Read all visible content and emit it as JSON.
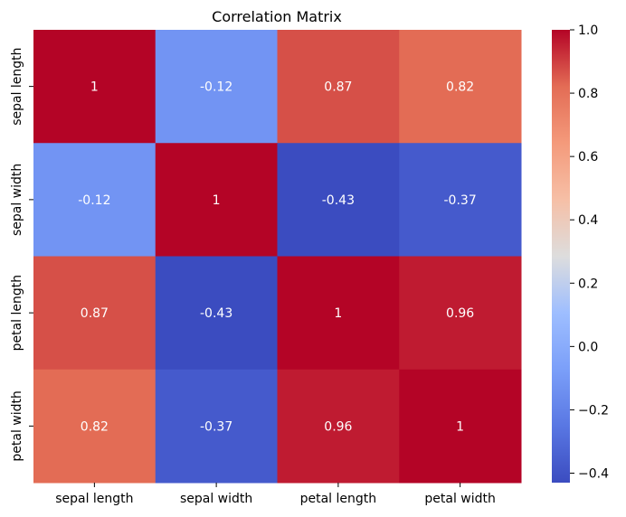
{
  "chart_data": {
    "type": "heatmap",
    "title": "Correlation Matrix",
    "row_labels": [
      "sepal length",
      "sepal width",
      "petal length",
      "petal width"
    ],
    "col_labels": [
      "sepal length",
      "sepal width",
      "petal length",
      "petal width"
    ],
    "values": [
      [
        1.0,
        -0.12,
        0.87,
        0.82
      ],
      [
        -0.12,
        1.0,
        -0.43,
        -0.37
      ],
      [
        0.87,
        -0.43,
        1.0,
        0.96
      ],
      [
        0.82,
        -0.37,
        0.96,
        1.0
      ]
    ],
    "annotations": [
      [
        "1",
        "-0.12",
        "0.87",
        "0.82"
      ],
      [
        "-0.12",
        "1",
        "-0.43",
        "-0.37"
      ],
      [
        "0.87",
        "-0.43",
        "1",
        "0.96"
      ],
      [
        "0.82",
        "-0.37",
        "0.96",
        "1"
      ]
    ],
    "colormap": "coolwarm",
    "colorbar": {
      "vmin": -0.43,
      "vmax": 1.0,
      "ticks": [
        -0.4,
        -0.2,
        0.0,
        0.2,
        0.4,
        0.6,
        0.8,
        1.0
      ],
      "tick_labels": [
        "−0.4",
        "−0.2",
        "0.0",
        "0.2",
        "0.4",
        "0.6",
        "0.8",
        "1.0"
      ]
    }
  }
}
